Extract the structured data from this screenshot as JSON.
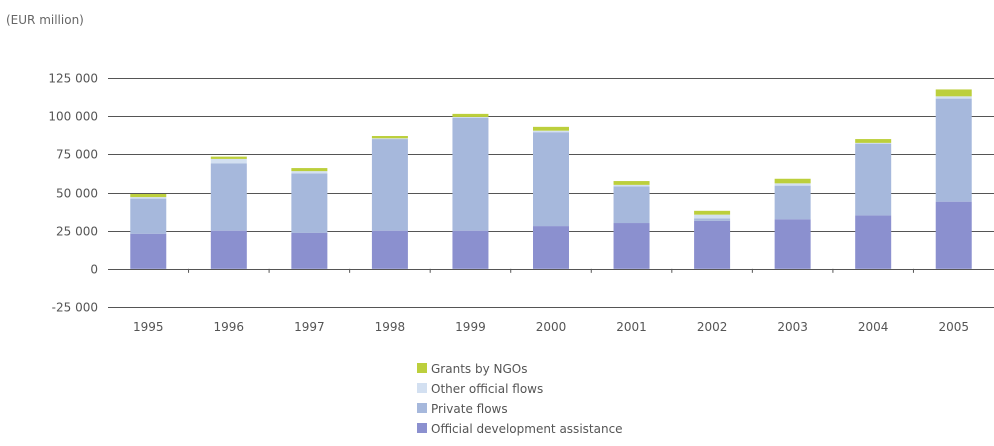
{
  "chart_data": {
    "type": "bar",
    "stacked": true,
    "unit_label": "(EUR million)",
    "title": "",
    "xlabel": "",
    "ylabel": "",
    "categories": [
      "1995",
      "1996",
      "1997",
      "1998",
      "1999",
      "2000",
      "2001",
      "2002",
      "2003",
      "2004",
      "2005"
    ],
    "ylim": [
      -25000,
      125000
    ],
    "yticks": [
      125000,
      100000,
      75000,
      50000,
      25000,
      0,
      -25000
    ],
    "ytick_labels": [
      "125 000",
      "100 000",
      "75 000",
      "50 000",
      "25 000",
      "0",
      "-25 000"
    ],
    "grid": true,
    "legend_position": "bottom-center",
    "series": [
      {
        "name": "Official development assistance",
        "color": "#8b90cf",
        "values": [
          23000,
          25000,
          23500,
          25000,
          25000,
          28000,
          30000,
          31500,
          32500,
          35000,
          44000
        ]
      },
      {
        "name": "Private flows",
        "color": "#a6b8dc",
        "values": [
          23000,
          44000,
          39000,
          60000,
          74000,
          61500,
          24000,
          1500,
          22000,
          47000,
          67500
        ]
      },
      {
        "name": "Other official flows",
        "color": "#d3e0f1",
        "values": [
          1000,
          3000,
          1500,
          500,
          500,
          1000,
          1000,
          2500,
          1500,
          500,
          1500
        ]
      },
      {
        "name": "Grants by NGOs",
        "color": "#bccf3c",
        "values": [
          2000,
          1500,
          2000,
          1500,
          2000,
          2500,
          2500,
          2500,
          3000,
          2500,
          4500
        ]
      }
    ]
  }
}
